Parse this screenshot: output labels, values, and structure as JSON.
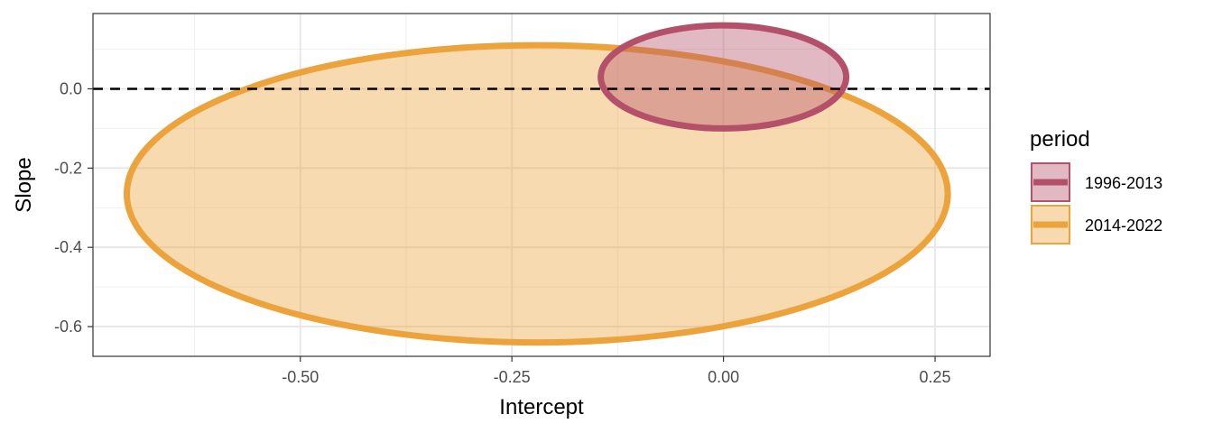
{
  "chart_data": {
    "type": "ellipse",
    "xlabel": "Intercept",
    "ylabel": "Slope",
    "xlim": [
      -0.745,
      0.315
    ],
    "ylim": [
      -0.675,
      0.19
    ],
    "x_ticks": [
      -0.5,
      -0.25,
      0.0,
      0.25
    ],
    "x_tick_labels": [
      "-0.50",
      "-0.25",
      "0.00",
      "0.25"
    ],
    "y_ticks": [
      -0.6,
      -0.4,
      -0.2,
      0.0
    ],
    "y_tick_labels": [
      "-0.6",
      "-0.4",
      "-0.2",
      "0.0"
    ],
    "reference_line": {
      "y": 0,
      "style": "dashed"
    },
    "grid": true,
    "legend": {
      "title": "period",
      "position": "right",
      "entries": [
        "1996-2013",
        "2014-2022"
      ]
    },
    "series": [
      {
        "name": "2014-2022",
        "center": [
          -0.22,
          -0.265
        ],
        "semi_axes": [
          0.485,
          0.375
        ],
        "color": "#EDA33B"
      },
      {
        "name": "1996-2013",
        "center": [
          0.0,
          0.03
        ],
        "semi_axes": [
          0.145,
          0.13
        ],
        "color": "#B5506A"
      }
    ]
  }
}
